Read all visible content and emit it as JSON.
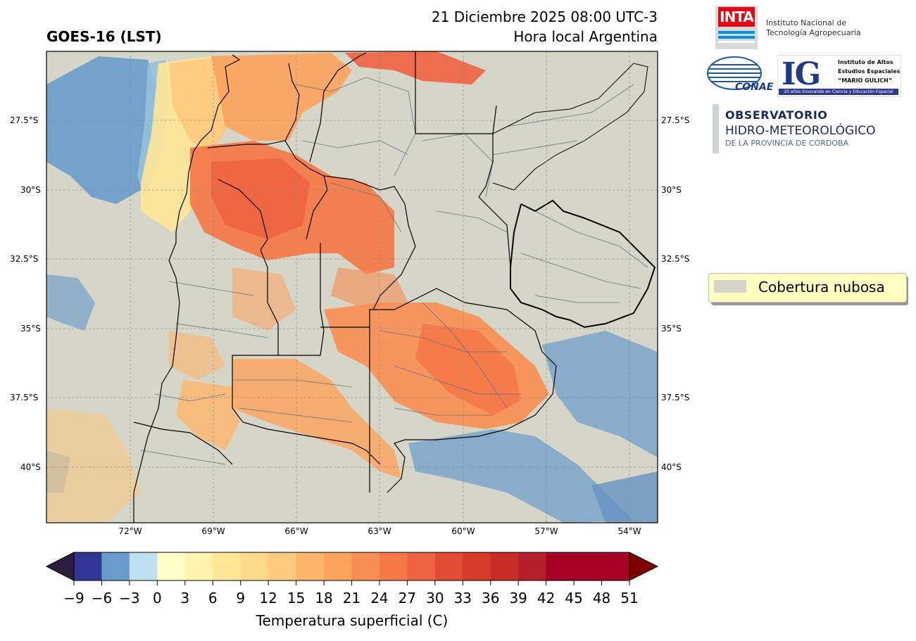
{
  "header": {
    "product": "GOES-16 (LST)",
    "datetime": "21 Diciembre 2025 08:00 UTC-3",
    "local_time": "Hora local Argentina"
  },
  "logos": {
    "inta": {
      "mark": "INTA",
      "name_line1": "Instituto Nacional de",
      "name_line2": "Tecnología Agropecuaria"
    },
    "conae": {
      "mark": "CONAE"
    },
    "ig": {
      "mark": "IG",
      "line1": "Instituto de Altos",
      "line2": "Estudios Espaciales",
      "line3": "“MARIO GULICH”",
      "banner": "20 años innovando en Ciencia y Educación Espacial"
    },
    "observatorio": {
      "line1": "OBSERVATORIO",
      "line2": "HIDRO-METEOROLÓGICO",
      "line3": "DE LA PROVINCIA DE CÓRDOBA"
    }
  },
  "map": {
    "lat_labels": [
      "27.5°S",
      "30°S",
      "32.5°S",
      "35°S",
      "37.5°S",
      "40°S"
    ],
    "lat_values": [
      -27.5,
      -30,
      -32.5,
      -35,
      -37.5,
      -40
    ],
    "lon_labels": [
      "72°W",
      "69°W",
      "66°W",
      "63°W",
      "60°W",
      "57°W",
      "54°W"
    ],
    "lon_values": [
      -72,
      -69,
      -66,
      -63,
      -60,
      -57,
      -54
    ],
    "extent": {
      "lon": [
        -75,
        -53
      ],
      "lat": [
        -42,
        -25
      ]
    },
    "colors": {
      "cloud": "#d5d5c8",
      "border": "#000000",
      "department": "#5a6a80"
    }
  },
  "legend": {
    "label": "Cobertura nubosa",
    "swatch_color": "#d5d5c8"
  },
  "colorbar": {
    "label": "Temperatura superficial (C)",
    "ticks": [
      "−9",
      "−6",
      "−3",
      "0",
      "3",
      "6",
      "9",
      "12",
      "15",
      "18",
      "21",
      "24",
      "27",
      "30",
      "33",
      "36",
      "39",
      "42",
      "45",
      "48",
      "51"
    ],
    "under_color": "#2d1e3e",
    "over_color": "#800000",
    "colors": [
      "#313695",
      "#6a9ccb",
      "#c0e2f0",
      "#ffffc8",
      "#fff3b0",
      "#ffe696",
      "#fed98c",
      "#fdc97e",
      "#fdb56b",
      "#fca35c",
      "#f98e52",
      "#f57847",
      "#ee6340",
      "#e24b33",
      "#d53a2b",
      "#c72d26",
      "#b51f2a",
      "#a50026"
    ]
  }
}
